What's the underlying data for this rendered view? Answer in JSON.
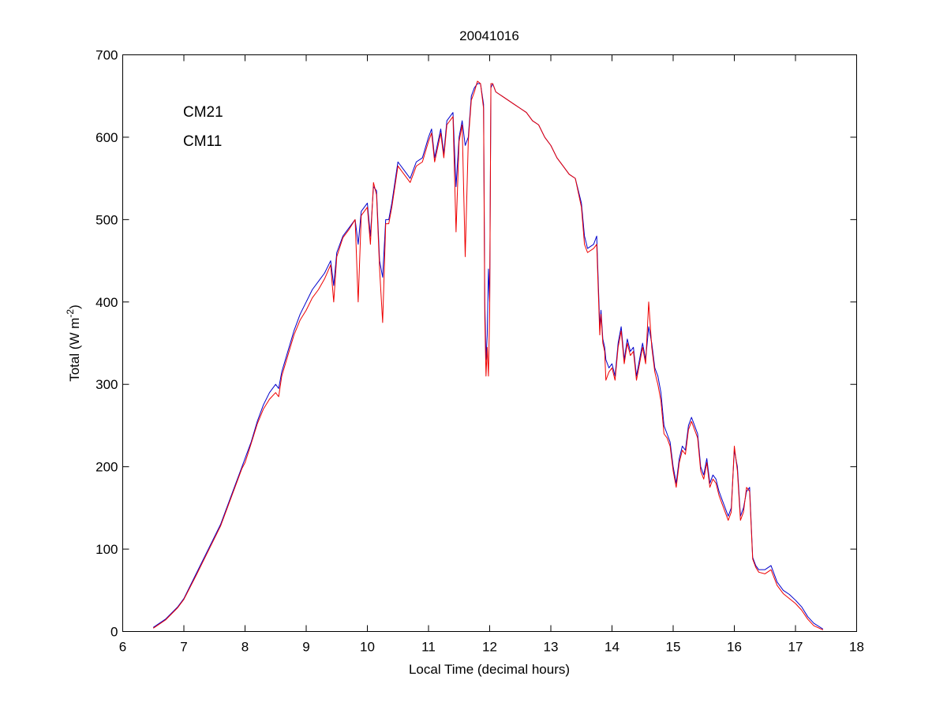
{
  "chart_data": {
    "type": "line",
    "title": "20041016",
    "xlabel": "Local Time (decimal hours)",
    "ylabel_main": "Total (W m",
    "ylabel_sup": "-2",
    "ylabel_end": ")",
    "xlim": [
      6,
      18
    ],
    "ylim": [
      0,
      700
    ],
    "xticks": [
      6,
      7,
      8,
      9,
      10,
      11,
      12,
      13,
      14,
      15,
      16,
      17,
      18
    ],
    "yticks": [
      0,
      100,
      200,
      300,
      400,
      500,
      600,
      700
    ],
    "grid": false,
    "legend_placement": "top-left",
    "series": [
      {
        "name": "CM21",
        "color": "#0000cc",
        "x": [
          6.5,
          6.7,
          6.9,
          7.0,
          7.2,
          7.4,
          7.6,
          7.8,
          7.95,
          8.0,
          8.1,
          8.2,
          8.3,
          8.4,
          8.5,
          8.55,
          8.6,
          8.7,
          8.8,
          8.9,
          9.0,
          9.1,
          9.2,
          9.3,
          9.4,
          9.45,
          9.5,
          9.6,
          9.7,
          9.8,
          9.85,
          9.9,
          10.0,
          10.05,
          10.1,
          10.15,
          10.2,
          10.25,
          10.3,
          10.35,
          10.4,
          10.5,
          10.6,
          10.7,
          10.75,
          10.8,
          10.9,
          11.0,
          11.05,
          11.1,
          11.2,
          11.25,
          11.3,
          11.4,
          11.45,
          11.5,
          11.55,
          11.6,
          11.65,
          11.7,
          11.75,
          11.8,
          11.85,
          11.9,
          11.92,
          11.94,
          11.96,
          11.98,
          12.0,
          12.02,
          12.05,
          12.1,
          12.2,
          12.3,
          12.4,
          12.5,
          12.6,
          12.7,
          12.8,
          12.9,
          13.0,
          13.1,
          13.2,
          13.3,
          13.4,
          13.5,
          13.55,
          13.6,
          13.7,
          13.75,
          13.8,
          13.82,
          13.85,
          13.88,
          13.9,
          13.95,
          14.0,
          14.05,
          14.1,
          14.15,
          14.2,
          14.25,
          14.3,
          14.35,
          14.4,
          14.45,
          14.5,
          14.55,
          14.6,
          14.65,
          14.7,
          14.75,
          14.8,
          14.85,
          14.9,
          14.95,
          15.0,
          15.05,
          15.1,
          15.15,
          15.2,
          15.25,
          15.3,
          15.35,
          15.4,
          15.45,
          15.5,
          15.55,
          15.6,
          15.65,
          15.7,
          15.75,
          15.8,
          15.85,
          15.9,
          15.95,
          16.0,
          16.05,
          16.1,
          16.15,
          16.2,
          16.25,
          16.3,
          16.35,
          16.4,
          16.5,
          16.6,
          16.7,
          16.8,
          16.9,
          17.0,
          17.1,
          17.2,
          17.3,
          17.45
        ],
        "y": [
          5,
          15,
          30,
          40,
          70,
          100,
          130,
          170,
          200,
          210,
          230,
          255,
          275,
          290,
          300,
          295,
          315,
          340,
          365,
          385,
          400,
          415,
          425,
          435,
          450,
          420,
          460,
          480,
          490,
          500,
          470,
          510,
          520,
          480,
          540,
          535,
          450,
          430,
          500,
          500,
          520,
          570,
          560,
          550,
          560,
          570,
          575,
          600,
          610,
          575,
          610,
          580,
          620,
          630,
          540,
          600,
          620,
          590,
          600,
          650,
          660,
          665,
          665,
          640,
          400,
          330,
          360,
          440,
          400,
          660,
          665,
          655,
          650,
          645,
          640,
          635,
          630,
          620,
          615,
          600,
          590,
          575,
          565,
          555,
          550,
          520,
          480,
          465,
          470,
          480,
          370,
          390,
          355,
          345,
          330,
          320,
          325,
          310,
          350,
          370,
          330,
          355,
          340,
          345,
          310,
          330,
          350,
          330,
          370,
          350,
          320,
          310,
          290,
          250,
          240,
          230,
          200,
          180,
          210,
          225,
          220,
          250,
          260,
          250,
          240,
          200,
          190,
          210,
          180,
          190,
          185,
          170,
          160,
          150,
          140,
          150,
          220,
          200,
          140,
          150,
          170,
          175,
          90,
          80,
          75,
          75,
          80,
          60,
          50,
          45,
          38,
          30,
          18,
          10,
          3
        ]
      },
      {
        "name": "CM11",
        "color": "#ee0000",
        "x": [
          6.5,
          6.7,
          6.9,
          7.0,
          7.2,
          7.4,
          7.6,
          7.8,
          7.95,
          8.0,
          8.1,
          8.2,
          8.3,
          8.4,
          8.5,
          8.55,
          8.6,
          8.7,
          8.8,
          8.9,
          9.0,
          9.1,
          9.2,
          9.3,
          9.4,
          9.45,
          9.5,
          9.6,
          9.7,
          9.8,
          9.85,
          9.9,
          10.0,
          10.05,
          10.1,
          10.15,
          10.2,
          10.25,
          10.3,
          10.35,
          10.4,
          10.5,
          10.6,
          10.7,
          10.75,
          10.8,
          10.9,
          11.0,
          11.05,
          11.1,
          11.2,
          11.25,
          11.3,
          11.4,
          11.45,
          11.5,
          11.55,
          11.6,
          11.65,
          11.7,
          11.75,
          11.8,
          11.85,
          11.9,
          11.92,
          11.94,
          11.96,
          11.98,
          12.0,
          12.02,
          12.05,
          12.1,
          12.2,
          12.3,
          12.4,
          12.5,
          12.6,
          12.7,
          12.8,
          12.9,
          13.0,
          13.1,
          13.2,
          13.3,
          13.4,
          13.5,
          13.55,
          13.6,
          13.7,
          13.75,
          13.8,
          13.82,
          13.85,
          13.88,
          13.9,
          13.95,
          14.0,
          14.05,
          14.1,
          14.15,
          14.2,
          14.25,
          14.3,
          14.35,
          14.4,
          14.45,
          14.5,
          14.55,
          14.6,
          14.65,
          14.7,
          14.75,
          14.8,
          14.85,
          14.9,
          14.95,
          15.0,
          15.05,
          15.1,
          15.15,
          15.2,
          15.25,
          15.3,
          15.35,
          15.4,
          15.45,
          15.5,
          15.55,
          15.6,
          15.65,
          15.7,
          15.75,
          15.8,
          15.85,
          15.9,
          15.95,
          16.0,
          16.05,
          16.1,
          16.15,
          16.2,
          16.25,
          16.3,
          16.35,
          16.4,
          16.5,
          16.6,
          16.7,
          16.8,
          16.9,
          17.0,
          17.1,
          17.2,
          17.3,
          17.45
        ],
        "y": [
          4,
          14,
          29,
          39,
          68,
          98,
          128,
          168,
          198,
          205,
          228,
          252,
          270,
          282,
          290,
          285,
          310,
          335,
          360,
          378,
          390,
          405,
          415,
          428,
          445,
          400,
          455,
          478,
          488,
          500,
          400,
          505,
          515,
          470,
          545,
          530,
          440,
          375,
          495,
          495,
          515,
          565,
          555,
          545,
          555,
          565,
          570,
          595,
          605,
          570,
          605,
          575,
          615,
          625,
          485,
          595,
          615,
          455,
          595,
          645,
          655,
          668,
          665,
          635,
          380,
          310,
          345,
          310,
          390,
          665,
          665,
          655,
          650,
          645,
          640,
          635,
          630,
          620,
          615,
          600,
          590,
          575,
          565,
          555,
          550,
          515,
          470,
          460,
          465,
          470,
          360,
          385,
          350,
          340,
          305,
          315,
          320,
          305,
          345,
          365,
          325,
          350,
          335,
          340,
          305,
          325,
          345,
          325,
          400,
          345,
          315,
          300,
          280,
          240,
          235,
          225,
          195,
          175,
          205,
          220,
          215,
          245,
          255,
          245,
          235,
          195,
          185,
          205,
          175,
          185,
          180,
          165,
          155,
          145,
          135,
          145,
          225,
          195,
          135,
          145,
          175,
          170,
          88,
          78,
          72,
          70,
          75,
          56,
          46,
          40,
          34,
          26,
          15,
          7,
          2
        ]
      }
    ]
  }
}
